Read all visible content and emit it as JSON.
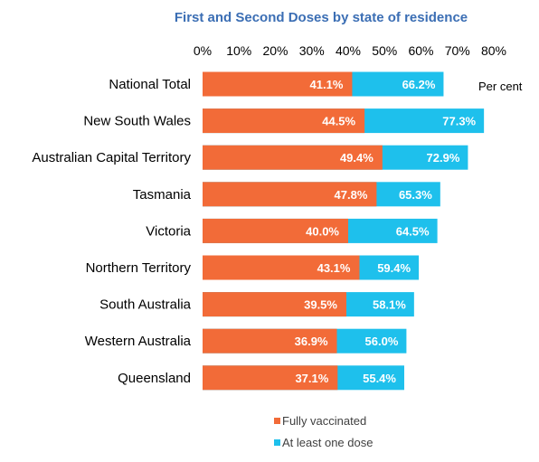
{
  "chart_data": {
    "type": "bar",
    "orientation": "horizontal",
    "title": "First and Second Doses by state of residence",
    "unit_label": "Per cent",
    "xlim": [
      0,
      80
    ],
    "tick_step": 10,
    "tick_labels": [
      "0%",
      "10%",
      "20%",
      "30%",
      "40%",
      "50%",
      "60%",
      "70%",
      "80%"
    ],
    "categories": [
      "National Total",
      "New South Wales",
      "Australian Capital Territory",
      "Tasmania",
      "Victoria",
      "Northern Territory",
      "South Australia",
      "Western Australia",
      "Queensland"
    ],
    "series": [
      {
        "name": "Fully vaccinated",
        "color": "#f26b38",
        "values": [
          41.1,
          44.5,
          49.4,
          47.8,
          40.0,
          43.1,
          39.5,
          36.9,
          37.1
        ],
        "labels": [
          "41.1%",
          "44.5%",
          "49.4%",
          "47.8%",
          "40.0%",
          "43.1%",
          "39.5%",
          "36.9%",
          "37.1%"
        ]
      },
      {
        "name": "At least one dose",
        "color": "#1ec0ec",
        "values": [
          66.2,
          77.3,
          72.9,
          65.3,
          64.5,
          59.4,
          58.1,
          56.0,
          55.4
        ],
        "labels": [
          "66.2%",
          "77.3%",
          "72.9%",
          "65.3%",
          "64.5%",
          "59.4%",
          "58.1%",
          "56.0%",
          "55.4%"
        ]
      }
    ],
    "title_color": "#3b6eb4",
    "legend_position": "bottom-center",
    "grid": false
  }
}
